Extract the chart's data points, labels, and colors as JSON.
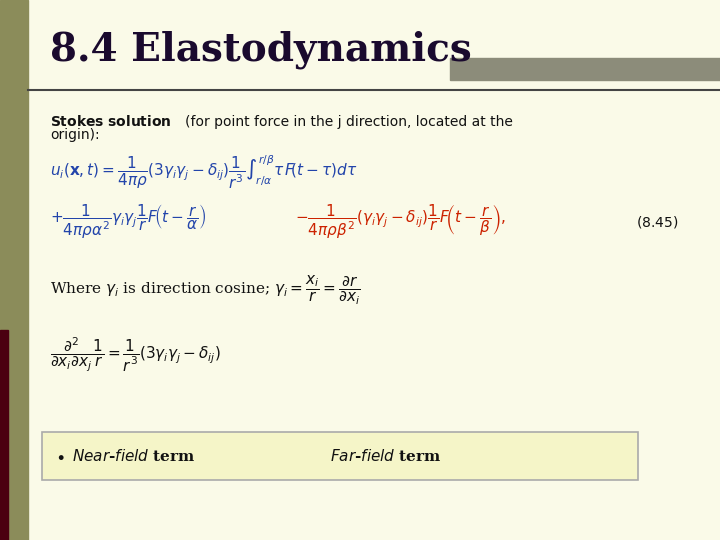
{
  "title": "8.4 Elastodynamics",
  "bg_color": "#FAFAE8",
  "left_bar_color": "#8B8C5A",
  "title_color": "#1a0a2e",
  "title_fontsize": 28,
  "body_bg": "#FAFAE8",
  "top_bar_color": "#8C8C7A",
  "left_accent_color": "#4B0010",
  "blue_color": "#2244AA",
  "red_color": "#CC2200",
  "black_color": "#111111",
  "box_bg": "#F5F5C8",
  "box_border": "#AAAAAA"
}
